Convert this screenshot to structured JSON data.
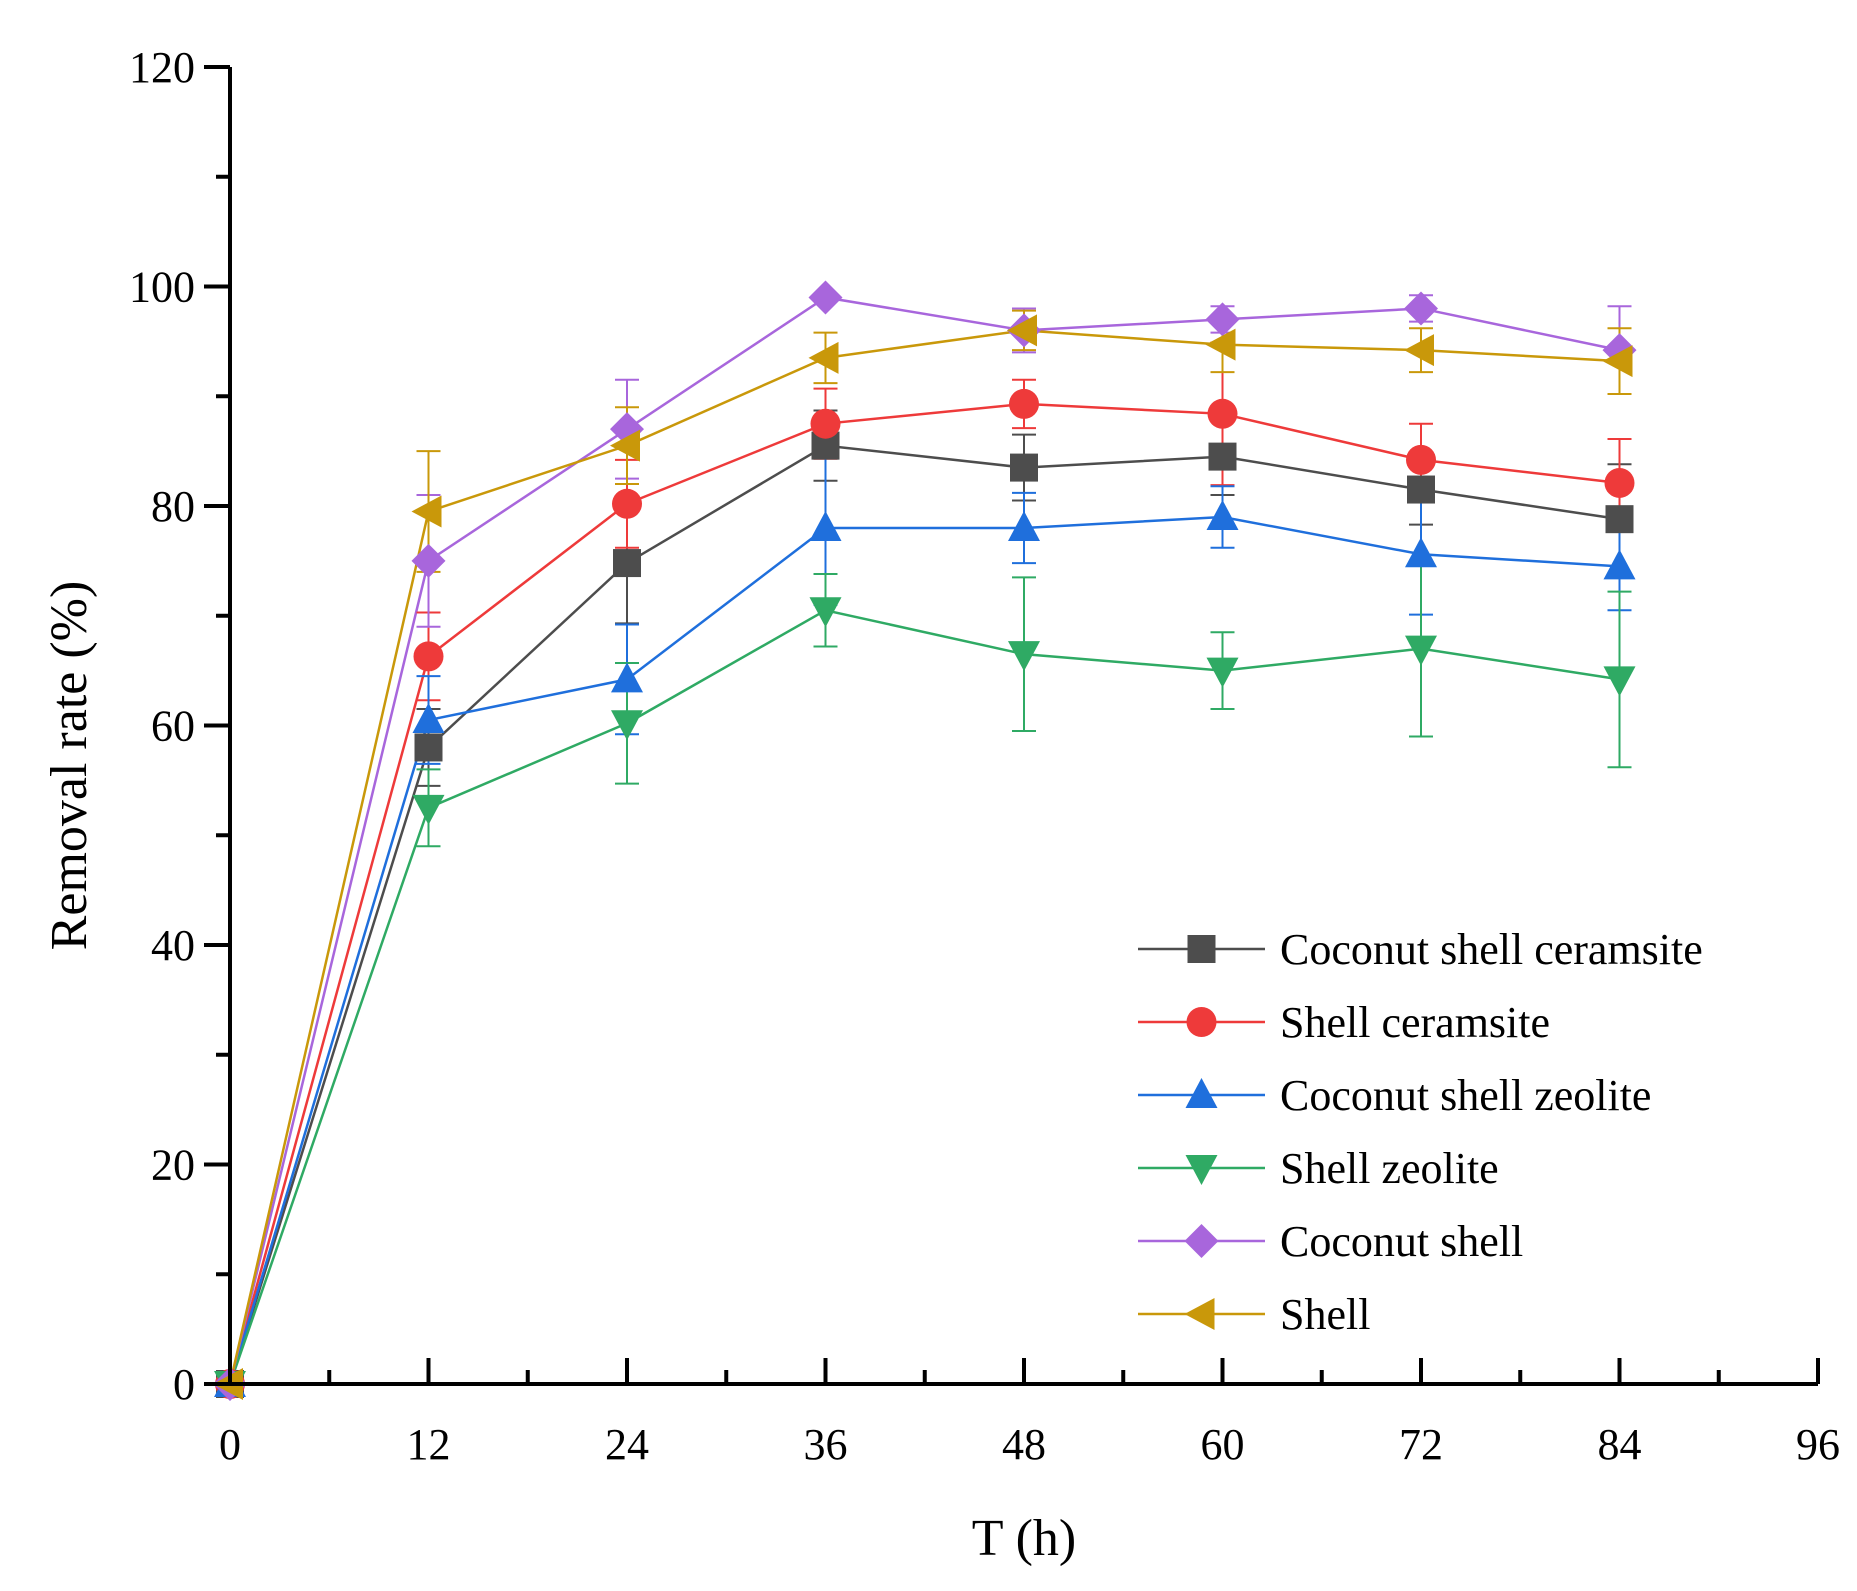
{
  "chart_data": {
    "type": "line",
    "title": "",
    "xlabel": "T (h)",
    "ylabel": "Removal rate (%)",
    "xlim": [
      0,
      96
    ],
    "ylim": [
      0,
      120
    ],
    "xticks": [
      0,
      12,
      24,
      36,
      48,
      60,
      72,
      84,
      96
    ],
    "yticks": [
      0,
      20,
      40,
      60,
      80,
      100,
      120
    ],
    "xtick_labels": [
      "0",
      "12",
      "24",
      "36",
      "48",
      "60",
      "72",
      "84",
      "96"
    ],
    "ytick_labels": [
      "0",
      "20",
      "40",
      "60",
      "80",
      "100",
      "120"
    ],
    "grid": false,
    "legend_position": "bottom-right",
    "x": [
      0,
      12,
      24,
      36,
      48,
      60,
      72,
      84
    ],
    "series": [
      {
        "name": "Coconut shell ceramsite",
        "color": "#4d4d4d",
        "marker": "square",
        "values": [
          0,
          58,
          74.8,
          85.5,
          83.5,
          84.5,
          81.5,
          78.8
        ],
        "errors": [
          0,
          3.5,
          5.5,
          3.2,
          3.0,
          3.5,
          3.2,
          5.0
        ]
      },
      {
        "name": "Shell ceramsite",
        "color": "#ee3a3a",
        "marker": "circle",
        "values": [
          0,
          66.3,
          80.2,
          87.5,
          89.3,
          88.4,
          84.2,
          82.1
        ],
        "errors": [
          0,
          4.0,
          4.0,
          3.2,
          2.2,
          6.5,
          3.3,
          4.0
        ]
      },
      {
        "name": "Coconut shell zeolite",
        "color": "#1f6fdc",
        "marker": "triangle-up",
        "values": [
          0,
          60.5,
          64.2,
          78,
          78,
          79,
          75.6,
          74.5
        ],
        "errors": [
          0,
          4.0,
          5.0,
          7.0,
          3.2,
          2.8,
          5.5,
          4.0
        ]
      },
      {
        "name": "Shell zeolite",
        "color": "#2faa64",
        "marker": "triangle-down",
        "values": [
          0,
          52.5,
          60.2,
          70.5,
          66.5,
          65,
          67,
          64.2
        ],
        "errors": [
          0,
          3.5,
          5.5,
          3.3,
          7.0,
          3.5,
          8.0,
          8.0
        ]
      },
      {
        "name": "Coconut shell",
        "color": "#a866dc",
        "marker": "diamond",
        "values": [
          0,
          75,
          87,
          99,
          96,
          97,
          98,
          94.2
        ],
        "errors": [
          0,
          6.0,
          4.5,
          0,
          2.0,
          1.2,
          1.2,
          4.0
        ]
      },
      {
        "name": "Shell",
        "color": "#c9980a",
        "marker": "triangle-left",
        "values": [
          0,
          79.5,
          85.5,
          93.5,
          96,
          94.7,
          94.2,
          93.2
        ],
        "errors": [
          0,
          5.5,
          3.5,
          2.3,
          1.8,
          2.5,
          2.0,
          3.0
        ]
      }
    ]
  }
}
